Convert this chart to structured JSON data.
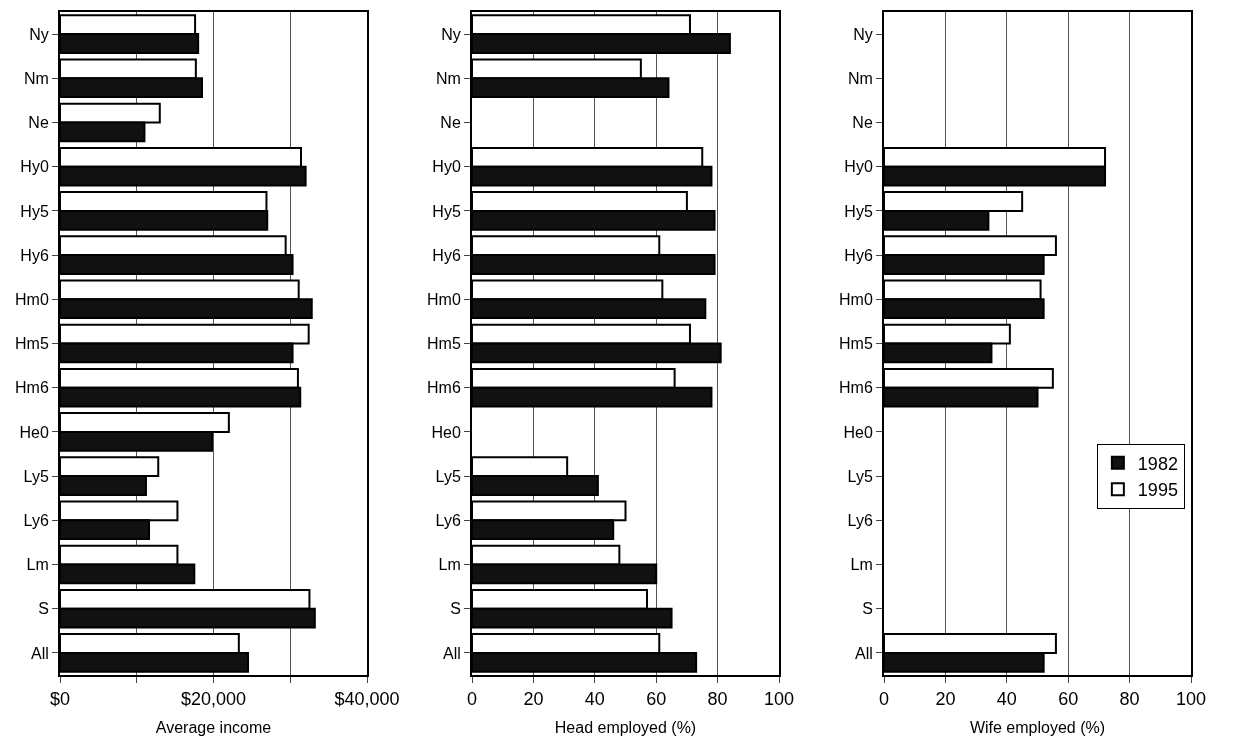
{
  "chart_data": [
    {
      "type": "bar",
      "orientation": "horizontal",
      "xlabel": "Average income",
      "categories": [
        "Ny",
        "Nm",
        "Ne",
        "Hy0",
        "Hy5",
        "Hy6",
        "Hm0",
        "Hm5",
        "Hm6",
        "He0",
        "Ly5",
        "Ly6",
        "Lm",
        "S",
        "All"
      ],
      "series": [
        {
          "color": "#ffffff",
          "values": [
            17600,
            17700,
            13000,
            31400,
            26900,
            29400,
            31100,
            32400,
            31000,
            22000,
            12800,
            15300,
            15300,
            32500,
            23300
          ]
        },
        {
          "color": "#111111",
          "values": [
            18000,
            18500,
            11000,
            32000,
            27000,
            30300,
            32800,
            30300,
            31300,
            19800,
            11200,
            11600,
            17500,
            33200,
            24500
          ]
        }
      ],
      "xlim": [
        0,
        40000
      ],
      "xticks": [
        {
          "value": 0,
          "label": "$0"
        },
        {
          "value": 10000,
          "label": null
        },
        {
          "value": 20000,
          "label": "$20,000"
        },
        {
          "value": 30000,
          "label": null
        },
        {
          "value": 40000,
          "label": "$40,000"
        }
      ],
      "grid": "x",
      "legend": false
    },
    {
      "type": "bar",
      "orientation": "horizontal",
      "xlabel": "Head employed (%)",
      "categories": [
        "Ny",
        "Nm",
        "Ne",
        "Hy0",
        "Hy5",
        "Hy6",
        "Hm0",
        "Hm5",
        "Hm6",
        "He0",
        "Ly5",
        "Ly6",
        "Lm",
        "S",
        "All"
      ],
      "series": [
        {
          "color": "#ffffff",
          "values": [
            71,
            55,
            null,
            75,
            70,
            61,
            62,
            71,
            66,
            null,
            31,
            50,
            48,
            57,
            61
          ]
        },
        {
          "color": "#111111",
          "values": [
            84,
            64,
            null,
            78,
            79,
            79,
            76,
            81,
            78,
            null,
            41,
            46,
            60,
            65,
            73
          ]
        }
      ],
      "xlim": [
        0,
        100
      ],
      "xticks": [
        0,
        20,
        40,
        60,
        80,
        100
      ],
      "grid": "x",
      "legend": false
    },
    {
      "type": "bar",
      "orientation": "horizontal",
      "xlabel": "Wife employed (%)",
      "categories": [
        "Ny",
        "Nm",
        "Ne",
        "Hy0",
        "Hy5",
        "Hy6",
        "Hm0",
        "Hm5",
        "Hm6",
        "He0",
        "Ly5",
        "Ly6",
        "Lm",
        "S",
        "All"
      ],
      "series": [
        {
          "name": "1995",
          "color": "#ffffff",
          "values": [
            null,
            null,
            null,
            72,
            45,
            56,
            51,
            41,
            55,
            null,
            null,
            null,
            null,
            null,
            56
          ]
        },
        {
          "name": "1982",
          "color": "#111111",
          "values": [
            null,
            null,
            null,
            72,
            34,
            52,
            52,
            35,
            50,
            null,
            null,
            null,
            null,
            null,
            52
          ]
        }
      ],
      "xlim": [
        0,
        100
      ],
      "xticks": [
        0,
        20,
        40,
        60,
        80,
        100
      ],
      "grid": "x",
      "legend": "right"
    }
  ]
}
